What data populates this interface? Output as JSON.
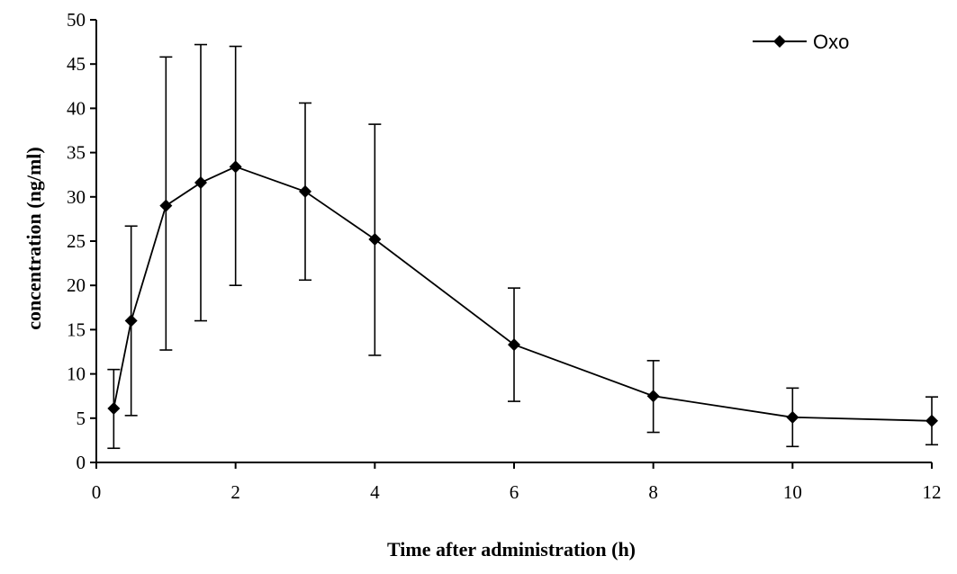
{
  "chart_data": {
    "type": "line",
    "title": "",
    "xlabel": "Time after administration  (h)",
    "ylabel": "concentration  (ng/ml)",
    "xlim": [
      0,
      12
    ],
    "ylim": [
      0,
      50
    ],
    "xticks": [
      0,
      2,
      4,
      6,
      8,
      10,
      12
    ],
    "yticks": [
      0,
      5,
      10,
      15,
      20,
      25,
      30,
      35,
      40,
      45,
      50
    ],
    "grid": false,
    "legend_position": "top-right",
    "series": [
      {
        "name": "Oxo",
        "color": "#000000",
        "marker": "diamond",
        "x": [
          0.25,
          0.5,
          1,
          1.5,
          2,
          3,
          4,
          6,
          8,
          10,
          12
        ],
        "y": [
          6.1,
          16.0,
          29.0,
          31.6,
          33.4,
          30.6,
          25.2,
          13.3,
          7.5,
          5.1,
          4.7
        ],
        "error_low": [
          1.6,
          5.3,
          12.7,
          16.0,
          20.0,
          20.6,
          12.1,
          6.9,
          3.4,
          1.8,
          2.0
        ],
        "error_high": [
          10.5,
          26.7,
          45.8,
          47.2,
          47.0,
          40.6,
          38.2,
          19.7,
          11.5,
          8.4,
          7.4
        ]
      }
    ]
  }
}
